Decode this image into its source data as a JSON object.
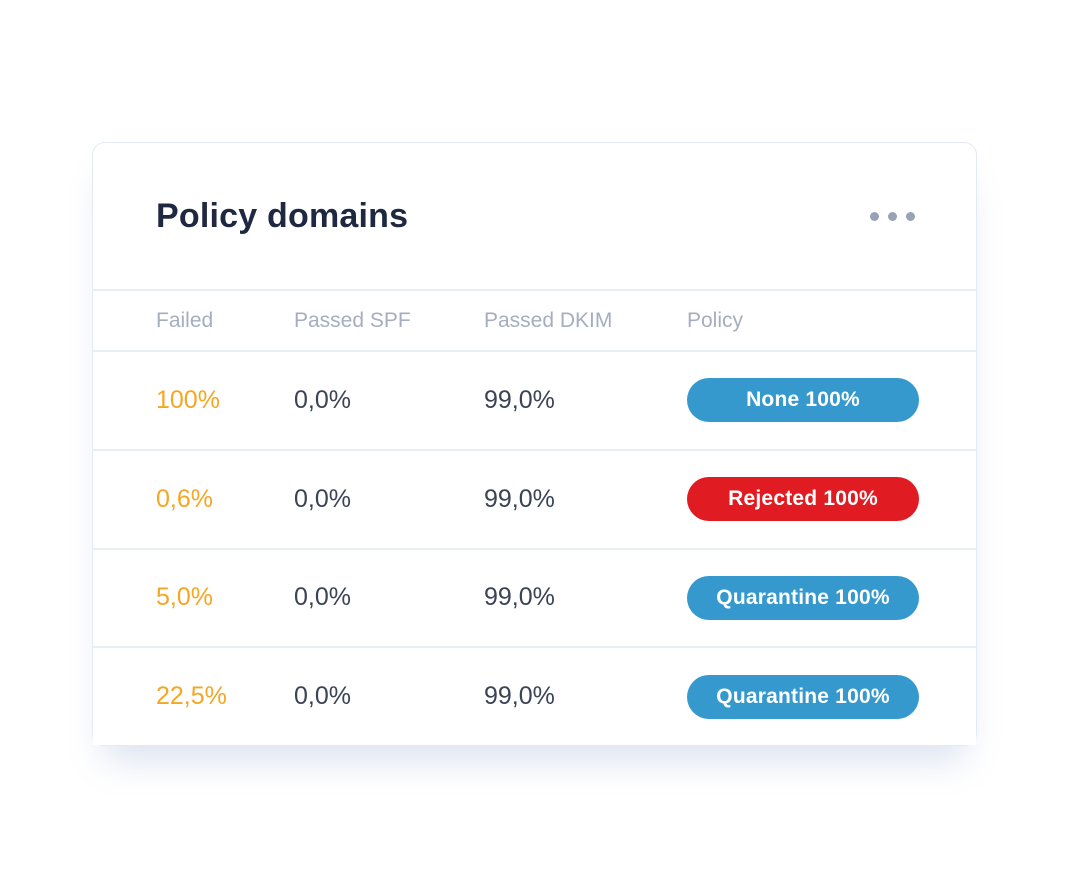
{
  "card": {
    "title": "Policy domains",
    "menu_icon": "ellipsis-icon"
  },
  "colors": {
    "failed_text": "#f5a623",
    "value_text": "#3b4355",
    "badge_blue": "#3699ce",
    "badge_red": "#e11b22"
  },
  "table": {
    "columns": {
      "failed": "Failed",
      "passed_spf": "Passed SPF",
      "passed_dkim": "Passed DKIM",
      "policy": "Policy"
    },
    "rows": [
      {
        "failed": "100%",
        "passed_spf": "0,0%",
        "passed_dkim": "99,0%",
        "policy_label": "None 100%",
        "policy_color": "#3699ce"
      },
      {
        "failed": "0,6%",
        "passed_spf": "0,0%",
        "passed_dkim": "99,0%",
        "policy_label": "Rejected 100%",
        "policy_color": "#e11b22"
      },
      {
        "failed": "5,0%",
        "passed_spf": "0,0%",
        "passed_dkim": "99,0%",
        "policy_label": "Quarantine 100%",
        "policy_color": "#3699ce"
      },
      {
        "failed": "22,5%",
        "passed_spf": "0,0%",
        "passed_dkim": "99,0%",
        "policy_label": "Quarantine 100%",
        "policy_color": "#3699ce"
      }
    ]
  }
}
